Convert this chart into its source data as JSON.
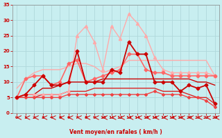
{
  "bg_color": "#c8eef0",
  "grid_color": "#b0d8db",
  "xlabel": "Vent moyen/en rafales ( km/h )",
  "xlabel_color": "#cc0000",
  "tick_color": "#cc0000",
  "xlim": [
    -0.5,
    23.5
  ],
  "ylim": [
    0,
    35
  ],
  "yticks": [
    0,
    5,
    10,
    15,
    20,
    25,
    30,
    35
  ],
  "xticks": [
    0,
    1,
    2,
    3,
    4,
    5,
    6,
    7,
    8,
    9,
    10,
    11,
    12,
    13,
    14,
    15,
    16,
    17,
    18,
    19,
    20,
    21,
    22,
    23
  ],
  "lines": [
    {
      "x": [
        0,
        1,
        2,
        3,
        4,
        5,
        6,
        7,
        8,
        9,
        10,
        11,
        12,
        13,
        14,
        15,
        16,
        17,
        18,
        19,
        20,
        21,
        22,
        23
      ],
      "y": [
        8,
        11,
        13,
        14,
        14,
        14,
        15,
        16,
        16,
        15,
        13,
        14,
        15,
        17,
        17,
        17,
        17,
        17,
        17,
        17,
        17,
        17,
        17,
        12
      ],
      "color": "#ffaaaa",
      "lw": 1.0,
      "marker": null,
      "zorder": 2
    },
    {
      "x": [
        0,
        1,
        2,
        3,
        4,
        5,
        6,
        7,
        8,
        9,
        10,
        11,
        12,
        13,
        14,
        15,
        16,
        17,
        18,
        19,
        20,
        21,
        22,
        23
      ],
      "y": [
        5,
        6,
        6,
        6,
        6,
        6,
        7,
        25,
        28,
        23,
        14,
        28,
        24,
        32,
        29,
        25,
        18,
        14,
        13,
        13,
        13,
        13,
        13,
        12
      ],
      "color": "#ffaaaa",
      "lw": 1.0,
      "marker": "^",
      "ms": 3,
      "zorder": 3
    },
    {
      "x": [
        0,
        1,
        2,
        3,
        4,
        5,
        6,
        7,
        8,
        9,
        10,
        11,
        12,
        13,
        14,
        15,
        16,
        17,
        18,
        19,
        20,
        21,
        22,
        23
      ],
      "y": [
        5,
        11,
        12,
        12,
        9,
        10,
        16,
        17,
        10,
        11,
        12,
        13,
        14,
        19,
        19,
        14,
        13,
        13,
        12,
        12,
        12,
        12,
        12,
        12
      ],
      "color": "#ff6666",
      "lw": 1.2,
      "marker": "D",
      "ms": 2.5,
      "zorder": 4
    },
    {
      "x": [
        0,
        1,
        2,
        3,
        4,
        5,
        6,
        7,
        8,
        9,
        10,
        11,
        12,
        13,
        14,
        15,
        16,
        17,
        18,
        19,
        20,
        21,
        22,
        23
      ],
      "y": [
        5,
        6,
        9,
        12,
        9,
        9,
        10,
        20,
        10,
        10,
        10,
        14,
        13,
        23,
        19,
        19,
        10,
        10,
        10,
        7,
        9,
        8,
        9,
        3
      ],
      "color": "#cc0000",
      "lw": 1.3,
      "marker": "D",
      "ms": 2.5,
      "zorder": 5
    },
    {
      "x": [
        0,
        1,
        2,
        3,
        4,
        5,
        6,
        7,
        8,
        9,
        10,
        11,
        12,
        13,
        14,
        15,
        16,
        17,
        18,
        19,
        20,
        21,
        22,
        23
      ],
      "y": [
        5,
        6,
        6,
        8,
        8,
        9,
        10,
        10,
        10,
        10,
        11,
        11,
        11,
        11,
        11,
        11,
        11,
        11,
        11,
        11,
        11,
        10,
        10,
        9
      ],
      "color": "#cc0000",
      "lw": 1.0,
      "marker": null,
      "zorder": 2
    },
    {
      "x": [
        0,
        1,
        2,
        3,
        4,
        5,
        6,
        7,
        8,
        9,
        10,
        11,
        12,
        13,
        14,
        15,
        16,
        17,
        18,
        19,
        20,
        21,
        22,
        23
      ],
      "y": [
        5,
        5,
        5,
        6,
        6,
        6,
        7,
        7,
        7,
        8,
        8,
        8,
        8,
        8,
        8,
        8,
        8,
        7,
        7,
        7,
        6,
        5,
        5,
        3
      ],
      "color": "#dd2222",
      "lw": 1.0,
      "marker": null,
      "zorder": 2
    },
    {
      "x": [
        0,
        1,
        2,
        3,
        4,
        5,
        6,
        7,
        8,
        9,
        10,
        11,
        12,
        13,
        14,
        15,
        16,
        17,
        18,
        19,
        20,
        21,
        22,
        23
      ],
      "y": [
        5,
        5,
        5,
        5,
        5,
        5,
        6,
        6,
        6,
        6,
        6,
        6,
        6,
        6,
        6,
        6,
        7,
        6,
        6,
        6,
        5,
        5,
        4,
        2
      ],
      "color": "#ee4444",
      "lw": 1.0,
      "marker": "D",
      "ms": 2,
      "zorder": 3
    }
  ],
  "wind_arrows": {
    "y_data": -1.5,
    "color": "#cc0000",
    "count": 24
  }
}
